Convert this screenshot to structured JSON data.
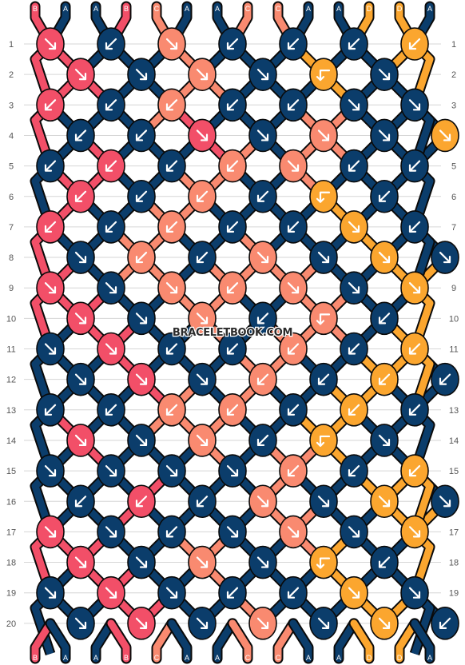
{
  "site_watermark": "BRACELETBOOK.COM",
  "colors": {
    "A": "#0b3d6b",
    "B": "#f24f68",
    "C": "#f98a70",
    "D": "#fba62f"
  },
  "strands_top": [
    "B",
    "A",
    "A",
    "B",
    "C",
    "A",
    "A",
    "C",
    "C",
    "A",
    "A",
    "D",
    "D",
    "A"
  ],
  "strands_bottom": [
    "B",
    "A",
    "A",
    "B",
    "C",
    "A",
    "A",
    "C",
    "C",
    "A",
    "A",
    "D",
    "D",
    "A"
  ],
  "row_numbers": [
    "1",
    "2",
    "3",
    "4",
    "5",
    "6",
    "7",
    "8",
    "9",
    "10",
    "11",
    "12",
    "13",
    "14",
    "15",
    "16",
    "17",
    "18",
    "19",
    "20"
  ],
  "knot_icons": {
    "fwd": "arrow-down-right-icon",
    "bwd": "arrow-down-left-icon",
    "fb": "arrow-right-then-down-icon",
    "bf": "arrow-left-then-down-icon"
  },
  "rows": [
    {
      "k": [
        [
          "B",
          "fwd"
        ],
        [
          "A",
          "bwd"
        ],
        [
          "C",
          "fwd"
        ],
        [
          "A",
          "bwd"
        ],
        [
          "A",
          "bwd"
        ],
        [
          "A",
          "bwd"
        ],
        [
          "D",
          "bwd"
        ]
      ]
    },
    {
      "k": [
        [
          "B",
          "fwd"
        ],
        [
          "A",
          "fwd"
        ],
        [
          "C",
          "fwd"
        ],
        [
          "A",
          "fwd"
        ],
        [
          "D",
          "bf"
        ],
        [
          "A",
          "fwd"
        ]
      ]
    },
    {
      "k": [
        [
          "B",
          "bwd"
        ],
        [
          "A",
          "bwd"
        ],
        [
          "C",
          "bwd"
        ],
        [
          "A",
          "bwd"
        ],
        [
          "A",
          "bwd"
        ],
        [
          "A",
          "fwd"
        ],
        [
          "A",
          "fwd"
        ]
      ]
    },
    {
      "k": [
        [
          "A",
          "bwd"
        ],
        [
          "A",
          "bwd"
        ],
        [
          "B",
          "fwd"
        ],
        [
          "A",
          "fwd"
        ],
        [
          "C",
          "fwd"
        ],
        [
          "A",
          "fwd"
        ],
        [
          "D",
          "fwd"
        ]
      ]
    },
    {
      "k": [
        [
          "A",
          "bwd"
        ],
        [
          "B",
          "bwd"
        ],
        [
          "A",
          "bwd"
        ],
        [
          "C",
          "bwd"
        ],
        [
          "C",
          "fwd"
        ],
        [
          "A",
          "bwd"
        ],
        [
          "A",
          "bwd"
        ]
      ]
    },
    {
      "k": [
        [
          "B",
          "bwd"
        ],
        [
          "A",
          "bwd"
        ],
        [
          "C",
          "bwd"
        ],
        [
          "A",
          "bwd"
        ],
        [
          "D",
          "bf"
        ],
        [
          "A",
          "bwd"
        ]
      ]
    },
    {
      "k": [
        [
          "B",
          "bwd"
        ],
        [
          "A",
          "bwd"
        ],
        [
          "C",
          "bwd"
        ],
        [
          "A",
          "bwd"
        ],
        [
          "A",
          "bwd"
        ],
        [
          "D",
          "fwd"
        ],
        [
          "A",
          "bwd"
        ]
      ]
    },
    {
      "k": [
        [
          "A",
          "fwd"
        ],
        [
          "C",
          "bwd"
        ],
        [
          "A",
          "bwd"
        ],
        [
          "C",
          "fwd"
        ],
        [
          "A",
          "fwd"
        ],
        [
          "D",
          "fwd"
        ],
        [
          "A",
          "fwd"
        ]
      ]
    },
    {
      "k": [
        [
          "B",
          "fwd"
        ],
        [
          "A",
          "fwd"
        ],
        [
          "C",
          "fwd"
        ],
        [
          "C",
          "bwd"
        ],
        [
          "C",
          "fwd"
        ],
        [
          "A",
          "fwd"
        ],
        [
          "D",
          "fwd"
        ]
      ]
    },
    {
      "k": [
        [
          "B",
          "fwd"
        ],
        [
          "A",
          "fwd"
        ],
        [
          "C",
          "fwd"
        ],
        [
          "A",
          "bwd"
        ],
        [
          "C",
          "bf"
        ],
        [
          "A",
          "bwd"
        ]
      ]
    },
    {
      "k": [
        [
          "A",
          "fwd"
        ],
        [
          "B",
          "fwd"
        ],
        [
          "A",
          "bwd"
        ],
        [
          "A",
          "bwd"
        ],
        [
          "C",
          "bwd"
        ],
        [
          "A",
          "bwd"
        ],
        [
          "D",
          "bwd"
        ]
      ]
    },
    {
      "k": [
        [
          "A",
          "fwd"
        ],
        [
          "B",
          "fwd"
        ],
        [
          "A",
          "fwd"
        ],
        [
          "C",
          "bwd"
        ],
        [
          "A",
          "bwd"
        ],
        [
          "D",
          "bwd"
        ],
        [
          "A",
          "bwd"
        ]
      ]
    },
    {
      "k": [
        [
          "A",
          "bwd"
        ],
        [
          "A",
          "bwd"
        ],
        [
          "C",
          "bwd"
        ],
        [
          "C",
          "bwd"
        ],
        [
          "A",
          "bwd"
        ],
        [
          "D",
          "bwd"
        ],
        [
          "A",
          "bwd"
        ]
      ]
    },
    {
      "k": [
        [
          "B",
          "fwd"
        ],
        [
          "A",
          "fwd"
        ],
        [
          "C",
          "fwd"
        ],
        [
          "A",
          "bwd"
        ],
        [
          "D",
          "bf"
        ],
        [
          "A",
          "fwd"
        ]
      ]
    },
    {
      "k": [
        [
          "A",
          "fwd"
        ],
        [
          "A",
          "fwd"
        ],
        [
          "A",
          "fwd"
        ],
        [
          "A",
          "fwd"
        ],
        [
          "C",
          "bwd"
        ],
        [
          "A",
          "bwd"
        ],
        [
          "D",
          "bwd"
        ]
      ]
    },
    {
      "k": [
        [
          "A",
          "bwd"
        ],
        [
          "B",
          "bwd"
        ],
        [
          "A",
          "bwd"
        ],
        [
          "C",
          "fwd"
        ],
        [
          "A",
          "fwd"
        ],
        [
          "D",
          "fwd"
        ],
        [
          "A",
          "fwd"
        ]
      ]
    },
    {
      "k": [
        [
          "B",
          "fwd"
        ],
        [
          "A",
          "fwd"
        ],
        [
          "A",
          "bwd"
        ],
        [
          "A",
          "fwd"
        ],
        [
          "C",
          "fwd"
        ],
        [
          "A",
          "fwd"
        ],
        [
          "D",
          "fwd"
        ]
      ]
    },
    {
      "k": [
        [
          "B",
          "fwd"
        ],
        [
          "A",
          "fwd"
        ],
        [
          "C",
          "fwd"
        ],
        [
          "A",
          "fwd"
        ],
        [
          "D",
          "bf"
        ],
        [
          "A",
          "bwd"
        ]
      ]
    },
    {
      "k": [
        [
          "A",
          "fwd"
        ],
        [
          "B",
          "fwd"
        ],
        [
          "A",
          "fwd"
        ],
        [
          "A",
          "bwd"
        ],
        [
          "A",
          "bwd"
        ],
        [
          "D",
          "fwd"
        ],
        [
          "A",
          "fwd"
        ]
      ]
    },
    {
      "k": [
        [
          "A",
          "fwd"
        ],
        [
          "B",
          "fwd"
        ],
        [
          "A",
          "fwd"
        ],
        [
          "C",
          "fwd"
        ],
        [
          "A",
          "fwd"
        ],
        [
          "D",
          "fwd"
        ],
        [
          "A",
          "bwd"
        ]
      ]
    }
  ]
}
